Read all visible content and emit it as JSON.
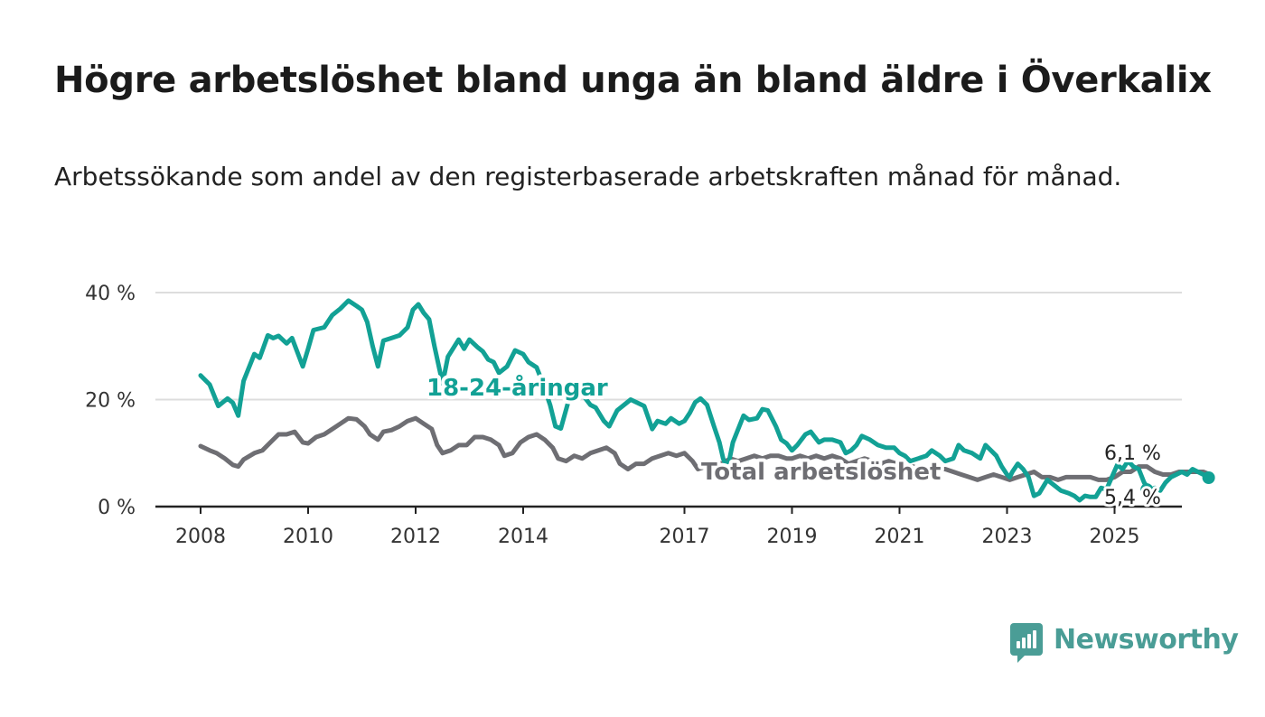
{
  "title": "Högre arbetslöshet bland unga än bland äldre i Överkalix",
  "subtitle": "Arbetssökande som andel av den registerbaserade arbetskraften månad för månad.",
  "brand": {
    "name": "Newsworthy"
  },
  "colors": {
    "youth": "#12a195",
    "total": "#6e6e73",
    "grid": "#dddddd",
    "axis": "#222222"
  },
  "chart_data": {
    "type": "line",
    "xlim": [
      2008,
      2026.1
    ],
    "ylim": [
      0,
      40
    ],
    "x_ticks": [
      "2008",
      "2010",
      "2012",
      "2014",
      "2017",
      "2019",
      "2021",
      "2023",
      "2025"
    ],
    "y_ticks": [
      "0 %",
      "20 %",
      "40 %"
    ],
    "grid": true,
    "series": [
      {
        "name": "18-24-åringar",
        "end_label": "5,4 %",
        "points": [
          [
            2008.0,
            24.5
          ],
          [
            2008.17,
            22.8
          ],
          [
            2008.33,
            18.8
          ],
          [
            2008.5,
            20.2
          ],
          [
            2008.6,
            19.4
          ],
          [
            2008.7,
            17.0
          ],
          [
            2008.8,
            23.5
          ],
          [
            2009.0,
            28.5
          ],
          [
            2009.1,
            27.8
          ],
          [
            2009.25,
            32.0
          ],
          [
            2009.35,
            31.5
          ],
          [
            2009.45,
            31.9
          ],
          [
            2009.6,
            30.5
          ],
          [
            2009.7,
            31.5
          ],
          [
            2009.9,
            26.2
          ],
          [
            2010.0,
            29.5
          ],
          [
            2010.1,
            33.0
          ],
          [
            2010.3,
            33.5
          ],
          [
            2010.45,
            35.8
          ],
          [
            2010.6,
            37.0
          ],
          [
            2010.75,
            38.5
          ],
          [
            2010.9,
            37.5
          ],
          [
            2011.0,
            36.8
          ],
          [
            2011.1,
            34.5
          ],
          [
            2011.2,
            30.0
          ],
          [
            2011.3,
            26.2
          ],
          [
            2011.4,
            31.0
          ],
          [
            2011.55,
            31.5
          ],
          [
            2011.7,
            32.0
          ],
          [
            2011.85,
            33.5
          ],
          [
            2011.95,
            36.8
          ],
          [
            2012.05,
            37.8
          ],
          [
            2012.15,
            36.2
          ],
          [
            2012.25,
            35.0
          ],
          [
            2012.35,
            30.0
          ],
          [
            2012.5,
            23.0
          ],
          [
            2012.6,
            28.0
          ],
          [
            2012.8,
            31.2
          ],
          [
            2012.9,
            29.5
          ],
          [
            2013.0,
            31.2
          ],
          [
            2013.15,
            29.8
          ],
          [
            2013.25,
            29.0
          ],
          [
            2013.35,
            27.5
          ],
          [
            2013.45,
            27.0
          ],
          [
            2013.55,
            25.0
          ],
          [
            2013.7,
            26.2
          ],
          [
            2013.85,
            29.2
          ],
          [
            2014.0,
            28.5
          ],
          [
            2014.1,
            27.0
          ],
          [
            2014.25,
            26.0
          ],
          [
            2014.35,
            23.5
          ],
          [
            2014.5,
            19.0
          ],
          [
            2014.6,
            15.0
          ],
          [
            2014.7,
            14.6
          ],
          [
            2014.85,
            20.0
          ],
          [
            2015.0,
            22.5
          ],
          [
            2015.1,
            21.0
          ],
          [
            2015.25,
            19.0
          ],
          [
            2015.35,
            18.5
          ],
          [
            2015.5,
            16.0
          ],
          [
            2015.6,
            15.0
          ],
          [
            2015.75,
            18.0
          ],
          [
            2016.0,
            20.0
          ],
          [
            2016.25,
            18.8
          ],
          [
            2016.4,
            14.5
          ],
          [
            2016.5,
            16.0
          ],
          [
            2016.65,
            15.5
          ],
          [
            2016.75,
            16.5
          ],
          [
            2016.9,
            15.5
          ],
          [
            2017.0,
            16.0
          ],
          [
            2017.1,
            17.5
          ],
          [
            2017.2,
            19.5
          ],
          [
            2017.3,
            20.2
          ],
          [
            2017.42,
            19.0
          ],
          [
            2017.55,
            15.0
          ],
          [
            2017.65,
            12.0
          ],
          [
            2017.72,
            9.0
          ],
          [
            2017.8,
            7.0
          ],
          [
            2017.9,
            12.0
          ],
          [
            2018.0,
            14.5
          ],
          [
            2018.1,
            17.0
          ],
          [
            2018.2,
            16.2
          ],
          [
            2018.35,
            16.5
          ],
          [
            2018.45,
            18.2
          ],
          [
            2018.55,
            18.0
          ],
          [
            2018.7,
            15.0
          ],
          [
            2018.8,
            12.5
          ],
          [
            2018.9,
            11.8
          ],
          [
            2019.0,
            10.5
          ],
          [
            2019.1,
            11.5
          ],
          [
            2019.25,
            13.5
          ],
          [
            2019.35,
            14.0
          ],
          [
            2019.5,
            12.0
          ],
          [
            2019.6,
            12.5
          ],
          [
            2019.75,
            12.5
          ],
          [
            2019.9,
            12.0
          ],
          [
            2020.0,
            10.0
          ],
          [
            2020.1,
            10.5
          ],
          [
            2020.2,
            11.5
          ],
          [
            2020.3,
            13.2
          ],
          [
            2020.45,
            12.5
          ],
          [
            2020.6,
            11.5
          ],
          [
            2020.75,
            11.0
          ],
          [
            2020.9,
            11.0
          ],
          [
            2021.0,
            10.0
          ],
          [
            2021.1,
            9.5
          ],
          [
            2021.2,
            8.5
          ],
          [
            2021.35,
            9.0
          ],
          [
            2021.5,
            9.5
          ],
          [
            2021.6,
            10.5
          ],
          [
            2021.75,
            9.5
          ],
          [
            2021.85,
            8.5
          ],
          [
            2022.0,
            9.0
          ],
          [
            2022.1,
            11.5
          ],
          [
            2022.2,
            10.5
          ],
          [
            2022.35,
            10.0
          ],
          [
            2022.5,
            9.0
          ],
          [
            2022.6,
            11.5
          ],
          [
            2022.7,
            10.5
          ],
          [
            2022.8,
            9.5
          ],
          [
            2022.9,
            7.5
          ],
          [
            2023.0,
            6.0
          ],
          [
            2023.05,
            5.5
          ],
          [
            2023.1,
            6.5
          ],
          [
            2023.2,
            8.0
          ],
          [
            2023.3,
            7.0
          ],
          [
            2023.4,
            5.5
          ],
          [
            2023.5,
            2.0
          ],
          [
            2023.6,
            2.5
          ],
          [
            2023.75,
            5.0
          ],
          [
            2023.9,
            3.8
          ],
          [
            2024.0,
            3.0
          ],
          [
            2024.15,
            2.5
          ],
          [
            2024.25,
            2.0
          ],
          [
            2024.35,
            1.2
          ],
          [
            2024.45,
            2.0
          ],
          [
            2024.55,
            1.8
          ],
          [
            2024.65,
            1.8
          ],
          [
            2024.75,
            3.5
          ],
          [
            2024.85,
            3.2
          ],
          [
            2024.95,
            5.5
          ],
          [
            2025.05,
            7.8
          ],
          [
            2025.15,
            7.0
          ],
          [
            2025.25,
            8.5
          ],
          [
            2025.35,
            7.5
          ],
          [
            2025.45,
            7.0
          ],
          [
            2025.55,
            4.5
          ],
          [
            2025.65,
            3.0
          ],
          [
            2025.75,
            3.5
          ],
          [
            2025.85,
            3.0
          ],
          [
            2025.95,
            4.5
          ],
          [
            2026.05,
            5.5
          ],
          [
            2026.15,
            6.0
          ],
          [
            2026.25,
            6.5
          ],
          [
            2026.35,
            6.0
          ],
          [
            2026.45,
            7.0
          ],
          [
            2026.55,
            6.5
          ],
          [
            2026.65,
            6.0
          ],
          [
            2026.75,
            5.4
          ]
        ]
      },
      {
        "name": "Total arbetslöshet",
        "end_label": "6,1 %",
        "points": [
          [
            2008.0,
            11.3
          ],
          [
            2008.17,
            10.5
          ],
          [
            2008.3,
            10.0
          ],
          [
            2008.45,
            9.0
          ],
          [
            2008.6,
            7.8
          ],
          [
            2008.7,
            7.5
          ],
          [
            2008.8,
            8.8
          ],
          [
            2009.0,
            10.0
          ],
          [
            2009.15,
            10.5
          ],
          [
            2009.3,
            12.0
          ],
          [
            2009.45,
            13.5
          ],
          [
            2009.6,
            13.5
          ],
          [
            2009.75,
            14.0
          ],
          [
            2009.9,
            12.0
          ],
          [
            2010.0,
            11.8
          ],
          [
            2010.15,
            13.0
          ],
          [
            2010.3,
            13.5
          ],
          [
            2010.45,
            14.5
          ],
          [
            2010.6,
            15.5
          ],
          [
            2010.75,
            16.5
          ],
          [
            2010.9,
            16.3
          ],
          [
            2011.05,
            15.0
          ],
          [
            2011.15,
            13.5
          ],
          [
            2011.3,
            12.5
          ],
          [
            2011.4,
            14.0
          ],
          [
            2011.55,
            14.3
          ],
          [
            2011.7,
            15.0
          ],
          [
            2011.85,
            16.0
          ],
          [
            2012.0,
            16.5
          ],
          [
            2012.15,
            15.5
          ],
          [
            2012.3,
            14.5
          ],
          [
            2012.4,
            11.5
          ],
          [
            2012.5,
            10.0
          ],
          [
            2012.65,
            10.5
          ],
          [
            2012.8,
            11.5
          ],
          [
            2012.95,
            11.5
          ],
          [
            2013.1,
            13.0
          ],
          [
            2013.25,
            13.0
          ],
          [
            2013.4,
            12.5
          ],
          [
            2013.55,
            11.5
          ],
          [
            2013.65,
            9.5
          ],
          [
            2013.8,
            10.0
          ],
          [
            2013.95,
            12.0
          ],
          [
            2014.1,
            13.0
          ],
          [
            2014.25,
            13.5
          ],
          [
            2014.4,
            12.5
          ],
          [
            2014.55,
            11.0
          ],
          [
            2014.65,
            9.0
          ],
          [
            2014.8,
            8.5
          ],
          [
            2014.95,
            9.5
          ],
          [
            2015.1,
            9.0
          ],
          [
            2015.25,
            10.0
          ],
          [
            2015.4,
            10.5
          ],
          [
            2015.55,
            11.0
          ],
          [
            2015.7,
            10.0
          ],
          [
            2015.8,
            8.0
          ],
          [
            2015.95,
            7.0
          ],
          [
            2016.1,
            8.0
          ],
          [
            2016.25,
            8.0
          ],
          [
            2016.4,
            9.0
          ],
          [
            2016.55,
            9.5
          ],
          [
            2016.7,
            10.0
          ],
          [
            2016.85,
            9.5
          ],
          [
            2017.0,
            10.0
          ],
          [
            2017.15,
            8.5
          ],
          [
            2017.25,
            7.0
          ],
          [
            2017.4,
            7.5
          ],
          [
            2017.55,
            8.5
          ],
          [
            2017.7,
            8.0
          ],
          [
            2017.85,
            9.0
          ],
          [
            2018.0,
            8.5
          ],
          [
            2018.15,
            9.0
          ],
          [
            2018.3,
            9.5
          ],
          [
            2018.45,
            9.0
          ],
          [
            2018.6,
            9.5
          ],
          [
            2018.75,
            9.5
          ],
          [
            2018.9,
            9.0
          ],
          [
            2019.0,
            9.0
          ],
          [
            2019.15,
            9.5
          ],
          [
            2019.3,
            9.0
          ],
          [
            2019.45,
            9.5
          ],
          [
            2019.6,
            9.0
          ],
          [
            2019.75,
            9.5
          ],
          [
            2019.9,
            9.0
          ],
          [
            2020.05,
            8.0
          ],
          [
            2020.2,
            8.5
          ],
          [
            2020.35,
            9.0
          ],
          [
            2020.5,
            8.5
          ],
          [
            2020.65,
            8.0
          ],
          [
            2020.8,
            8.5
          ],
          [
            2020.95,
            8.0
          ],
          [
            2021.1,
            7.5
          ],
          [
            2021.25,
            7.5
          ],
          [
            2021.4,
            7.0
          ],
          [
            2021.55,
            7.5
          ],
          [
            2021.7,
            7.0
          ],
          [
            2021.85,
            7.0
          ],
          [
            2022.0,
            6.5
          ],
          [
            2022.15,
            6.0
          ],
          [
            2022.3,
            5.5
          ],
          [
            2022.45,
            5.0
          ],
          [
            2022.6,
            5.5
          ],
          [
            2022.75,
            6.0
          ],
          [
            2022.9,
            5.5
          ],
          [
            2023.05,
            5.0
          ],
          [
            2023.2,
            5.5
          ],
          [
            2023.35,
            6.0
          ],
          [
            2023.5,
            6.5
          ],
          [
            2023.65,
            5.5
          ],
          [
            2023.8,
            5.5
          ],
          [
            2023.95,
            5.0
          ],
          [
            2024.1,
            5.5
          ],
          [
            2024.25,
            5.5
          ],
          [
            2024.4,
            5.5
          ],
          [
            2024.55,
            5.5
          ],
          [
            2024.7,
            5.0
          ],
          [
            2024.85,
            5.0
          ],
          [
            2025.0,
            5.5
          ],
          [
            2025.15,
            6.5
          ],
          [
            2025.3,
            6.5
          ],
          [
            2025.45,
            7.5
          ],
          [
            2025.6,
            7.5
          ],
          [
            2025.75,
            6.5
          ],
          [
            2025.9,
            6.0
          ],
          [
            2026.05,
            6.0
          ],
          [
            2026.2,
            6.5
          ],
          [
            2026.35,
            6.5
          ],
          [
            2026.5,
            6.5
          ],
          [
            2026.65,
            6.5
          ],
          [
            2026.75,
            6.1
          ]
        ]
      }
    ]
  }
}
